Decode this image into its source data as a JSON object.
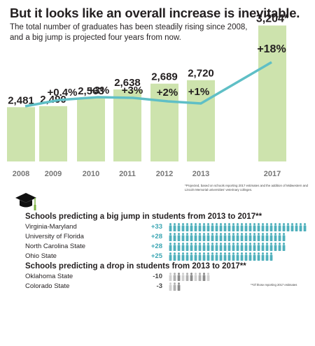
{
  "headline": "But it looks like an overall increase is inevitable.",
  "subtitle_line1": "The total number of graduates has been steadily rising since 2008,",
  "subtitle_line2": "and a big jump is projected four years from now.",
  "chart_data": {
    "type": "bar",
    "categories": [
      "2008",
      "2009",
      "2010",
      "2011",
      "2012",
      "2013",
      "2017"
    ],
    "values": [
      2481,
      2490,
      2563,
      2638,
      2689,
      2720,
      3204
    ],
    "value_labels": [
      "2,481",
      "2,490",
      "2,563",
      "2,638",
      "2,689",
      "2,720",
      "3,204*"
    ],
    "change_labels": [
      "+0.4%",
      "+3%",
      "+3%",
      "+2%",
      "+1%",
      "+18%"
    ],
    "line_trend": [
      0.12,
      0.25,
      0.25,
      0.2,
      0.15,
      1.0
    ],
    "ylim": [
      2000,
      3300
    ],
    "bar_color": "#cde3ad",
    "line_color": "#5fbfc6",
    "grid": false
  },
  "footnote_projection": "*Projected, based on schools reporting 2017 estimates and the addition of Midwestern and Lincoln Memorial universities' veterinary colleges.",
  "growth_section": {
    "title": "Schools predicting a big jump in students from 2013 to 2017**",
    "rows": [
      {
        "name": "Virginia-Maryland",
        "value": "+33",
        "count": 33
      },
      {
        "name": "University of Florida",
        "value": "+28",
        "count": 28
      },
      {
        "name": "North Carolina State",
        "value": "+28",
        "count": 28
      },
      {
        "name": "Ohio State",
        "value": "+25",
        "count": 25
      }
    ],
    "icon_color": "#4fb0bc"
  },
  "drop_section": {
    "title": "Schools predicting a drop in students from 2013 to 2017**",
    "rows": [
      {
        "name": "Oklahoma State",
        "value": "-10",
        "count": 10
      },
      {
        "name": "Colorado State",
        "value": "-3",
        "count": 3
      }
    ],
    "icon_color": "#9a9a9a"
  },
  "footnote_reporting": "**Of those reporting 2017 estimates"
}
